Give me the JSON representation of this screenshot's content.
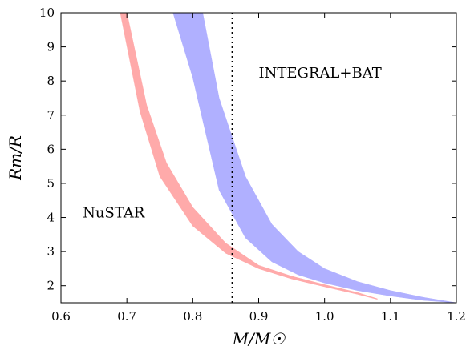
{
  "chart_data": {
    "type": "area",
    "title": "",
    "xlabel": "M/M☉",
    "ylabel": "Rm/R",
    "xlim": [
      0.6,
      1.2
    ],
    "ylim": [
      1.5,
      10
    ],
    "x_ticks": [
      "0.6",
      "0.7",
      "0.8",
      "0.9",
      "1.0",
      "1.1",
      "1.2"
    ],
    "y_ticks": [
      "2",
      "3",
      "4",
      "5",
      "6",
      "7",
      "8",
      "9",
      "10"
    ],
    "grid": false,
    "legend": "none",
    "vertical_line": {
      "x": 0.86,
      "style": "dotted",
      "color": "#000000"
    },
    "annotations": [
      {
        "text": "NuSTAR",
        "x": 0.633,
        "y": 4.0
      },
      {
        "text": "INTEGRAL+BAT",
        "x": 0.9,
        "y": 8.1
      }
    ],
    "bands": [
      {
        "label": "NuSTAR",
        "color": "#ffaaaa",
        "lower": [
          [
            0.69,
            10.0
          ],
          [
            0.72,
            7.1
          ],
          [
            0.75,
            5.2
          ],
          [
            0.8,
            3.75
          ],
          [
            0.85,
            2.95
          ],
          [
            0.9,
            2.5
          ],
          [
            0.95,
            2.2
          ],
          [
            1.0,
            1.97
          ],
          [
            1.05,
            1.75
          ],
          [
            1.08,
            1.6
          ]
        ],
        "upper": [
          [
            0.7,
            10.0
          ],
          [
            0.73,
            7.3
          ],
          [
            0.76,
            5.6
          ],
          [
            0.8,
            4.3
          ],
          [
            0.85,
            3.25
          ],
          [
            0.9,
            2.6
          ],
          [
            0.95,
            2.28
          ],
          [
            1.0,
            2.03
          ],
          [
            1.05,
            1.8
          ],
          [
            1.08,
            1.62
          ]
        ]
      },
      {
        "label": "INTEGRAL+BAT",
        "color": "#b0b0ff",
        "lower": [
          [
            0.77,
            10.0
          ],
          [
            0.8,
            8.1
          ],
          [
            0.84,
            4.8
          ],
          [
            0.88,
            3.4
          ],
          [
            0.92,
            2.7
          ],
          [
            0.96,
            2.32
          ],
          [
            1.0,
            2.08
          ],
          [
            1.05,
            1.86
          ],
          [
            1.1,
            1.7
          ],
          [
            1.15,
            1.57
          ],
          [
            1.2,
            1.5
          ]
        ],
        "upper": [
          [
            0.815,
            10.0
          ],
          [
            0.84,
            7.5
          ],
          [
            0.88,
            5.2
          ],
          [
            0.92,
            3.8
          ],
          [
            0.96,
            3.0
          ],
          [
            1.0,
            2.5
          ],
          [
            1.05,
            2.12
          ],
          [
            1.1,
            1.86
          ],
          [
            1.15,
            1.66
          ],
          [
            1.2,
            1.5
          ]
        ]
      }
    ]
  }
}
